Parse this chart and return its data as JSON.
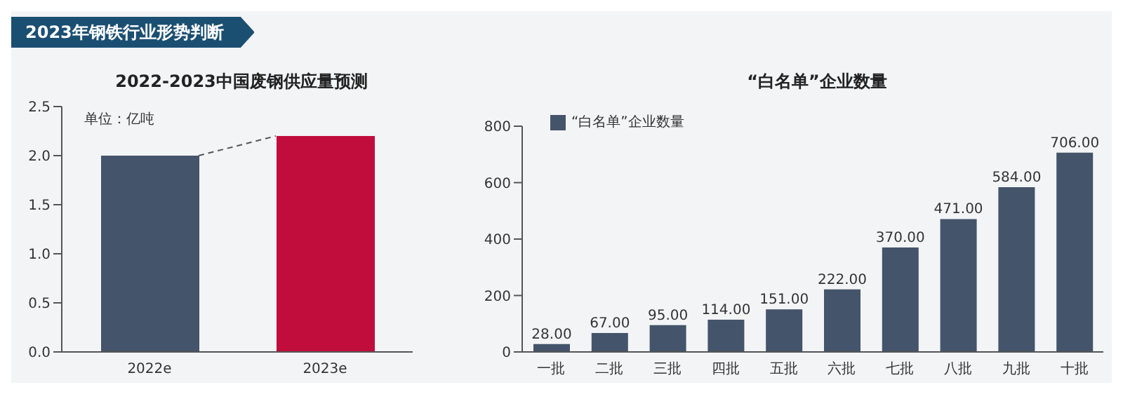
{
  "chart_data": [
    {
      "type": "other",
      "title": "2023年钢铁行业形势判断"
    },
    {
      "type": "bar",
      "title": "2022-2023中国废钢供应量预测",
      "annotations": [
        "单位：亿吨"
      ],
      "categories": [
        "2022e",
        "2023e"
      ],
      "values": [
        2.0,
        2.2
      ],
      "colors": [
        "#44546a",
        "#c00d3c"
      ],
      "ylim": [
        0,
        2.5
      ],
      "yticks": [
        {
          "value": 0,
          "label": "0.0"
        },
        {
          "value": 0.5,
          "label": "0.5"
        },
        {
          "value": 1,
          "label": "1.0"
        },
        {
          "value": 1.5,
          "label": "1.5"
        },
        {
          "value": 2,
          "label": "2.0"
        },
        {
          "value": 2.5,
          "label": "2.5"
        }
      ],
      "grid": false,
      "legend": false
    },
    {
      "type": "bar",
      "title": "“白名单”企业数量",
      "categories": [
        "一批",
        "二批",
        "三批",
        "四批",
        "五批",
        "六批",
        "七批",
        "八批",
        "九批",
        "十批"
      ],
      "series": [
        {
          "name": "“白名单”企业数量",
          "color": "#44546a",
          "values": [
            28,
            67,
            95,
            114,
            151,
            222,
            370,
            471,
            584,
            706
          ],
          "value_labels": [
            "28.00",
            "67.00",
            "95.00",
            "114.00",
            "151.00",
            "222.00",
            "370.00",
            "471.00",
            "584.00",
            "706.00"
          ]
        }
      ],
      "ylim": [
        0,
        800
      ],
      "yticks": [
        0,
        200,
        400,
        600,
        800
      ],
      "grid": false,
      "legend": "top left"
    }
  ]
}
